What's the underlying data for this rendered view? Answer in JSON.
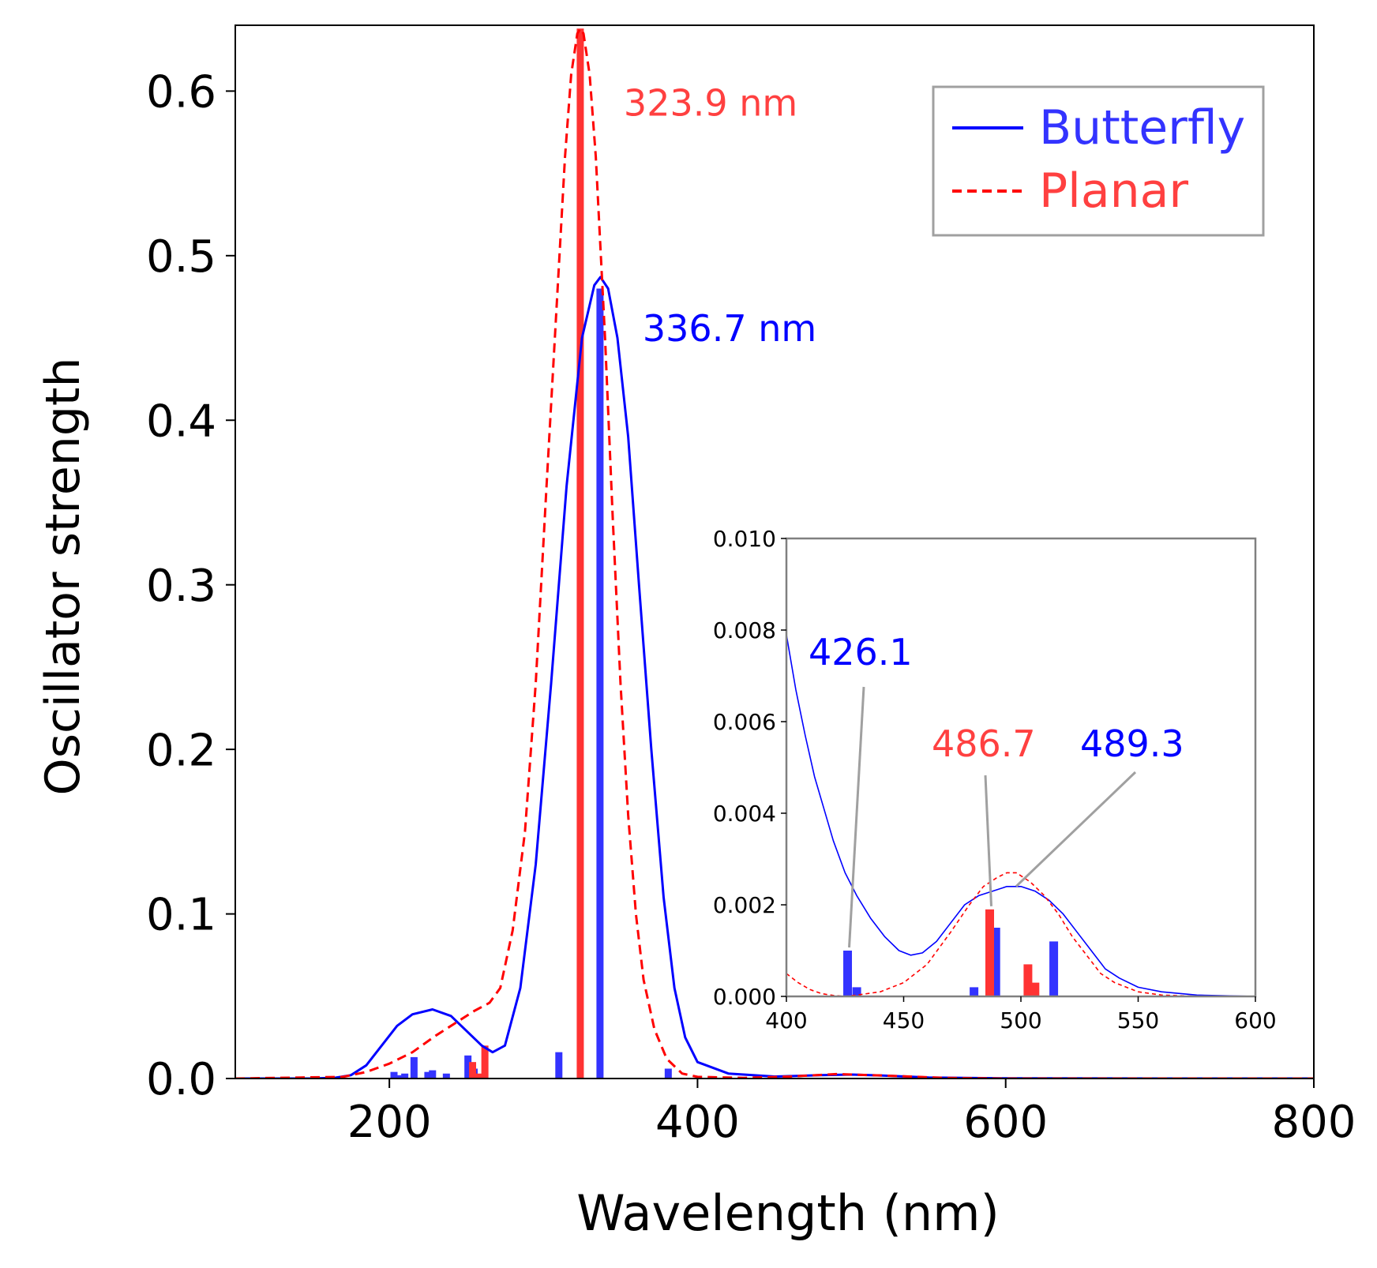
{
  "colors": {
    "butterfly": "#0000ff",
    "butterfly_bar": "#3333ff",
    "planar": "#ff0000",
    "planar_bar": "#ff3333",
    "planar_label": "#ff4040",
    "axis": "#000000",
    "inset_frame": "#808080",
    "leader": "#a0a0a0",
    "legend_frame": "#a0a0a0"
  },
  "chart_data": [
    {
      "id": "main",
      "type": "line+bar",
      "title": "",
      "xlabel": "Wavelength (nm)",
      "ylabel": "Oscillator strength",
      "xlim": [
        100,
        800
      ],
      "ylim": [
        0,
        0.64
      ],
      "xticks": [
        200,
        400,
        600,
        800
      ],
      "xtick_labels": [
        "200",
        "400",
        "600",
        "800"
      ],
      "yticks": [
        0.0,
        0.1,
        0.2,
        0.3,
        0.4,
        0.5,
        0.6
      ],
      "ytick_labels": [
        "0.0",
        "0.1",
        "0.2",
        "0.3",
        "0.4",
        "0.5",
        "0.6"
      ],
      "legend": {
        "position": "top-right",
        "entries": [
          {
            "label": "Butterfly",
            "style": "solid",
            "series": "butterfly"
          },
          {
            "label": "Planar",
            "style": "dashed",
            "series": "planar"
          }
        ]
      },
      "series": [
        {
          "name": "Butterfly",
          "kind": "line",
          "style": "solid",
          "x": [
            100,
            150,
            165,
            175,
            185,
            195,
            205,
            215,
            228,
            240,
            250,
            260,
            267,
            275,
            285,
            295,
            305,
            315,
            325,
            333,
            337,
            342,
            348,
            355,
            362,
            370,
            378,
            385,
            392,
            400,
            420,
            450,
            480,
            500,
            520,
            550,
            600,
            700,
            800
          ],
          "y": [
            0,
            0,
            0.0005,
            0.002,
            0.008,
            0.02,
            0.032,
            0.039,
            0.042,
            0.038,
            0.029,
            0.02,
            0.016,
            0.02,
            0.055,
            0.13,
            0.24,
            0.36,
            0.45,
            0.482,
            0.487,
            0.48,
            0.45,
            0.39,
            0.3,
            0.2,
            0.11,
            0.055,
            0.025,
            0.01,
            0.003,
            0.0012,
            0.002,
            0.0024,
            0.0018,
            0.0006,
            0.0001,
            0,
            0
          ]
        },
        {
          "name": "Planar",
          "kind": "line",
          "style": "dashed",
          "x": [
            100,
            170,
            185,
            200,
            215,
            230,
            245,
            255,
            265,
            272,
            280,
            288,
            295,
            302,
            308,
            314,
            318,
            322,
            324,
            326,
            330,
            334,
            340,
            345,
            350,
            355,
            360,
            365,
            372,
            380,
            390,
            400,
            430,
            460,
            490,
            520,
            560,
            600,
            800
          ],
          "y": [
            0,
            0.001,
            0.004,
            0.009,
            0.016,
            0.026,
            0.035,
            0.041,
            0.046,
            0.055,
            0.09,
            0.15,
            0.24,
            0.36,
            0.46,
            0.56,
            0.61,
            0.635,
            0.638,
            0.635,
            0.61,
            0.56,
            0.45,
            0.34,
            0.24,
            0.16,
            0.1,
            0.06,
            0.03,
            0.012,
            0.003,
            0.001,
            0.0004,
            0.0012,
            0.0027,
            0.0018,
            0.0004,
            0,
            0
          ]
        },
        {
          "name": "Butterfly",
          "kind": "bar",
          "x": [
            203,
            207,
            210,
            216,
            225,
            228,
            237,
            251,
            255,
            310,
            336.7,
            381
          ],
          "y": [
            0.004,
            0.002,
            0.003,
            0.013,
            0.004,
            0.005,
            0.003,
            0.014,
            0.006,
            0.016,
            0.48,
            0.006
          ]
        },
        {
          "name": "Planar",
          "kind": "bar",
          "x": [
            254,
            258,
            262,
            323.9
          ],
          "y": [
            0.01,
            0.003,
            0.02,
            0.638
          ]
        }
      ],
      "annotations": [
        {
          "text": "323.9 nm",
          "series": "planar",
          "x": 323.9,
          "y": 0.638
        },
        {
          "text": "336.7 nm",
          "series": "butterfly",
          "x": 336.7,
          "y": 0.487
        }
      ]
    },
    {
      "id": "inset",
      "type": "line+bar",
      "xlim": [
        400,
        600
      ],
      "ylim": [
        0,
        0.01
      ],
      "xticks": [
        400,
        450,
        500,
        550,
        600
      ],
      "xtick_labels": [
        "400",
        "450",
        "500",
        "550",
        "600"
      ],
      "yticks": [
        0.0,
        0.002,
        0.004,
        0.006,
        0.008,
        0.01
      ],
      "ytick_labels": [
        "0.000",
        "0.002",
        "0.004",
        "0.006",
        "0.008",
        "0.010"
      ],
      "series": [
        {
          "name": "Butterfly",
          "kind": "line",
          "style": "solid",
          "x": [
            400,
            404,
            408,
            412,
            416,
            420,
            425,
            430,
            436,
            442,
            448,
            453,
            458,
            464,
            470,
            476,
            482,
            488,
            494,
            500,
            506,
            512,
            518,
            524,
            530,
            536,
            542,
            550,
            560,
            575,
            600
          ],
          "y": [
            0.0079,
            0.0067,
            0.0057,
            0.0048,
            0.0041,
            0.0034,
            0.0027,
            0.0022,
            0.0017,
            0.0013,
            0.001,
            0.0009,
            0.00095,
            0.0012,
            0.0016,
            0.002,
            0.0022,
            0.0023,
            0.0024,
            0.0024,
            0.0023,
            0.0021,
            0.0018,
            0.0014,
            0.001,
            0.0006,
            0.0004,
            0.0002,
            0.0001,
            3e-05,
            0
          ]
        },
        {
          "name": "Planar",
          "kind": "line",
          "style": "dashed",
          "x": [
            400,
            405,
            410,
            415,
            420,
            425,
            430,
            440,
            450,
            460,
            470,
            478,
            484,
            490,
            494,
            498,
            504,
            510,
            516,
            522,
            528,
            534,
            540,
            550,
            560,
            575,
            600
          ],
          "y": [
            0.0005,
            0.0003,
            0.00015,
            6e-05,
            2e-05,
            0,
            3e-05,
            0.0001,
            0.0003,
            0.0007,
            0.0014,
            0.002,
            0.0024,
            0.0026,
            0.0027,
            0.0027,
            0.0025,
            0.0022,
            0.0018,
            0.0013,
            0.0009,
            0.0005,
            0.0003,
            0.0001,
            3e-05,
            0,
            0
          ]
        },
        {
          "name": "Butterfly",
          "kind": "bar",
          "x": [
            426.1,
            430,
            480,
            489.3,
            514
          ],
          "y": [
            0.001,
            0.0002,
            0.0002,
            0.0015,
            0.0012
          ]
        },
        {
          "name": "Planar",
          "kind": "bar",
          "x": [
            486.7,
            503,
            506
          ],
          "y": [
            0.0019,
            0.0007,
            0.0003
          ]
        }
      ],
      "annotations": [
        {
          "text": "426.1",
          "series": "butterfly",
          "x": 426.1,
          "y": 0.001
        },
        {
          "text": "486.7",
          "series": "planar",
          "x": 486.7,
          "y": 0.0019
        },
        {
          "text": "489.3",
          "series": "butterfly",
          "x": 498,
          "y": 0.0023
        }
      ]
    }
  ]
}
